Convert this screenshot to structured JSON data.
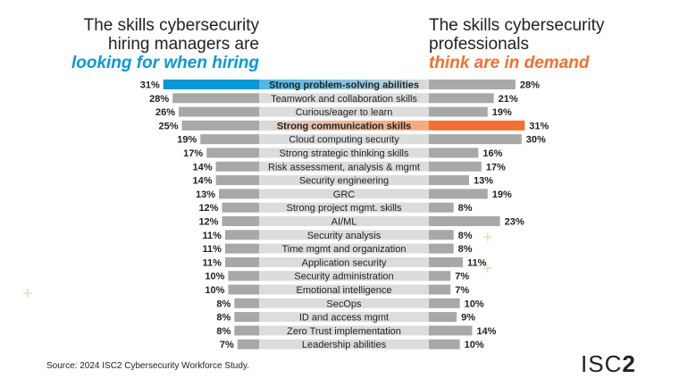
{
  "left_title": {
    "line1": "The skills cybersecurity",
    "line2": "hiring managers are",
    "highlight": "looking for when hiring"
  },
  "right_title": {
    "line1": "The skills cybersecurity",
    "line2": "professionals",
    "highlight": "think are in demand"
  },
  "source": "Source: 2024 ISC2 Cybersecurity Workforce Study.",
  "logo": "ISC2",
  "colors": {
    "bar": "#a8a8a8",
    "label_band": "#dcdcdc",
    "left_highlight": "#0a98d6",
    "right_highlight": "#f07030"
  },
  "chart_data": {
    "type": "bar",
    "orientation": "horizontal-butterfly",
    "categories": [
      "Strong problem-solving abilities",
      "Teamwork and collaboration skills",
      "Curious/eager to learn",
      "Strong communication skills",
      "Cloud computing security",
      "Strong strategic thinking skills",
      "Risk assessment, analysis & mgmt",
      "Security engineering",
      "GRC",
      "Strong project mgmt. skills",
      "AI/ML",
      "Security analysis",
      "Time mgmt and organization",
      "Application security",
      "Security administration",
      "Emotional intelligence",
      "SecOps",
      "ID and access mgmt",
      "Zero Trust implementation",
      "Leadership abilities"
    ],
    "bold_categories": [
      "Strong problem-solving abilities",
      "Strong communication skills"
    ],
    "series": [
      {
        "name": "looking for when hiring",
        "side": "left",
        "highlight_index": 0,
        "values": [
          31,
          28,
          26,
          25,
          19,
          17,
          14,
          14,
          13,
          12,
          12,
          11,
          11,
          11,
          10,
          10,
          8,
          8,
          8,
          7
        ]
      },
      {
        "name": "think are in demand",
        "side": "right",
        "highlight_index": 3,
        "values": [
          28,
          21,
          19,
          31,
          30,
          16,
          17,
          13,
          19,
          8,
          23,
          8,
          8,
          11,
          7,
          7,
          10,
          9,
          14,
          10
        ]
      }
    ],
    "unit": "%"
  }
}
